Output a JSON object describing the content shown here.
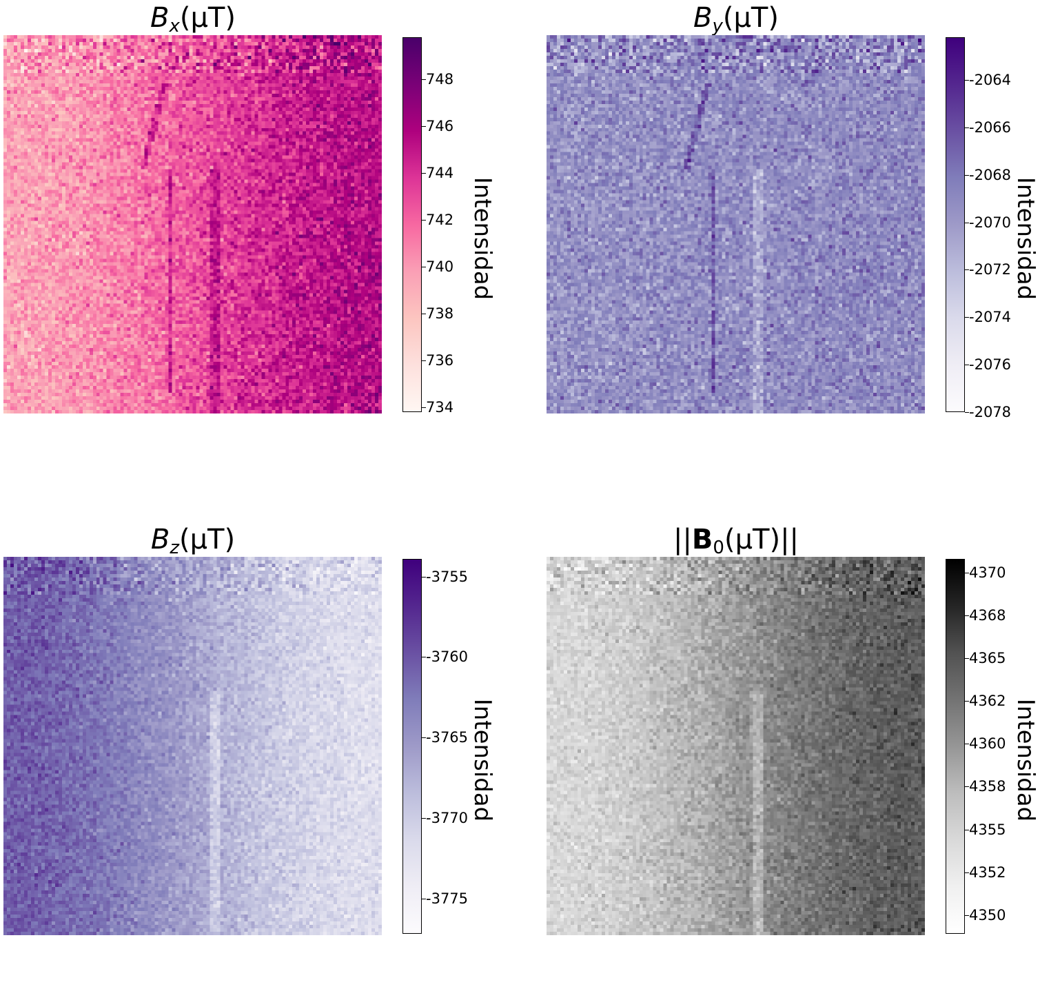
{
  "chart_data": [
    {
      "type": "heatmap",
      "title_math": {
        "symbol": "B",
        "subscript": "x",
        "unit": "(μT)"
      },
      "colorbar_label": "Intensidad",
      "colormap": "RdPu",
      "colormap_stops": [
        "#fff7f3",
        "#fde0dd",
        "#fcc5c0",
        "#fa9fb5",
        "#f768a1",
        "#dd3497",
        "#ae017e",
        "#7a0177",
        "#49006a"
      ],
      "vmin": 733.8,
      "vmax": 749.8,
      "ticks": [
        734,
        736,
        738,
        740,
        742,
        744,
        746,
        748
      ],
      "tick_labels": [
        "734",
        "736",
        "738",
        "740",
        "742",
        "744",
        "746",
        "748"
      ],
      "grid_size": 110,
      "features": {
        "left_level": 739.5,
        "right_level": 745.5,
        "noise": 1.6,
        "edge_line": true,
        "stripe_effect": "dark"
      }
    },
    {
      "type": "heatmap",
      "title_math": {
        "symbol": "B",
        "subscript": "y",
        "unit": "(μT)"
      },
      "colorbar_label": "Intensidad",
      "colormap": "Purples",
      "colormap_stops": [
        "#fcfbfd",
        "#efedf5",
        "#dadaeb",
        "#bcbddc",
        "#9e9ac8",
        "#807dba",
        "#6a51a3",
        "#54278f",
        "#3f007d"
      ],
      "vmin": -2078,
      "vmax": -2062.2,
      "ticks": [
        -2078,
        -2076,
        -2074,
        -2072,
        -2070,
        -2068,
        -2066,
        -2064
      ],
      "tick_labels": [
        "-2078",
        "-2076",
        "-2074",
        "-2072",
        "-2070",
        "-2068",
        "-2066",
        "-2064"
      ],
      "grid_size": 110,
      "features": {
        "left_level": -2069.5,
        "right_level": -2069.0,
        "noise": 1.8,
        "edge_line": true,
        "stripe_effect": "light"
      }
    },
    {
      "type": "heatmap",
      "title_math": {
        "symbol": "B",
        "subscript": "z",
        "unit": "(μT)"
      },
      "colorbar_label": "Intensidad",
      "colormap": "Purples",
      "colormap_stops": [
        "#fcfbfd",
        "#efedf5",
        "#dadaeb",
        "#bcbddc",
        "#9e9ac8",
        "#807dba",
        "#6a51a3",
        "#54278f",
        "#3f007d"
      ],
      "vmin": -3777.2,
      "vmax": -3753.9,
      "ticks": [
        -3775,
        -3770,
        -3765,
        -3760,
        -3755
      ],
      "tick_labels": [
        "-3775",
        "-3770",
        "-3765",
        "-3760",
        "-3755"
      ],
      "grid_size": 110,
      "features": {
        "left_level": -3760.5,
        "right_level": -3772.0,
        "noise": 1.7,
        "edge_line": false,
        "stripe_effect": "light"
      }
    },
    {
      "type": "heatmap",
      "title_math": {
        "symbol": "B",
        "subscript": "0",
        "unit": "(μT)",
        "norm": true
      },
      "colorbar_label": "Intensidad",
      "colormap": "Greys",
      "colormap_stops": [
        "#ffffff",
        "#f0f0f0",
        "#d9d9d9",
        "#bdbdbd",
        "#969696",
        "#737373",
        "#525252",
        "#252525",
        "#000000"
      ],
      "vmin": 4348.9,
      "vmax": 4370.8,
      "ticks": [
        4350,
        4352.5,
        4355,
        4357.5,
        4360,
        4362.5,
        4365,
        4367.5,
        4370
      ],
      "tick_labels": [
        "4350",
        "4352",
        "4355",
        "4358",
        "4360",
        "4362",
        "4365",
        "4368",
        "4370"
      ],
      "grid_size": 110,
      "features": {
        "left_level": 4354.5,
        "right_level": 4364.5,
        "noise": 1.6,
        "edge_line": false,
        "stripe_effect": "light"
      }
    }
  ]
}
